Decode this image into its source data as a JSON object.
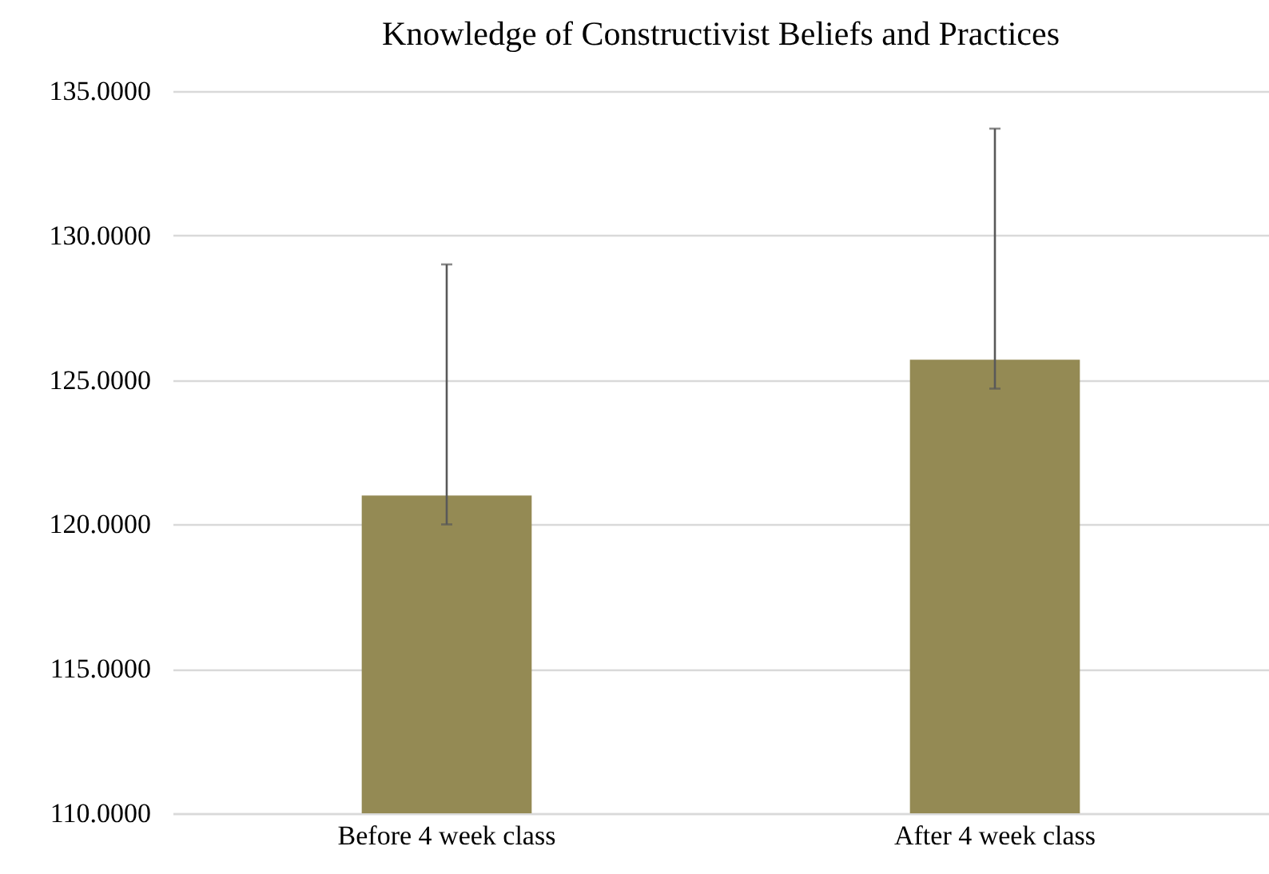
{
  "chart_data": {
    "type": "bar",
    "title": "Knowledge of Constructivist Beliefs and Practices",
    "categories": [
      "Before 4 week class",
      "After 4 week class"
    ],
    "values": [
      121.0,
      125.7
    ],
    "errors": [
      [
        120.0,
        129.0
      ],
      [
        124.7,
        133.7
      ]
    ],
    "color": "#948a54",
    "ylim": [
      110,
      135
    ],
    "yticks": [
      {
        "value": 110,
        "label": "110.0000"
      },
      {
        "value": 115,
        "label": "115.0000"
      },
      {
        "value": 120,
        "label": "120.0000"
      },
      {
        "value": 125,
        "label": "125.0000"
      },
      {
        "value": 130,
        "label": "130.0000"
      },
      {
        "value": 135,
        "label": "135.0000"
      }
    ],
    "grid": true
  }
}
